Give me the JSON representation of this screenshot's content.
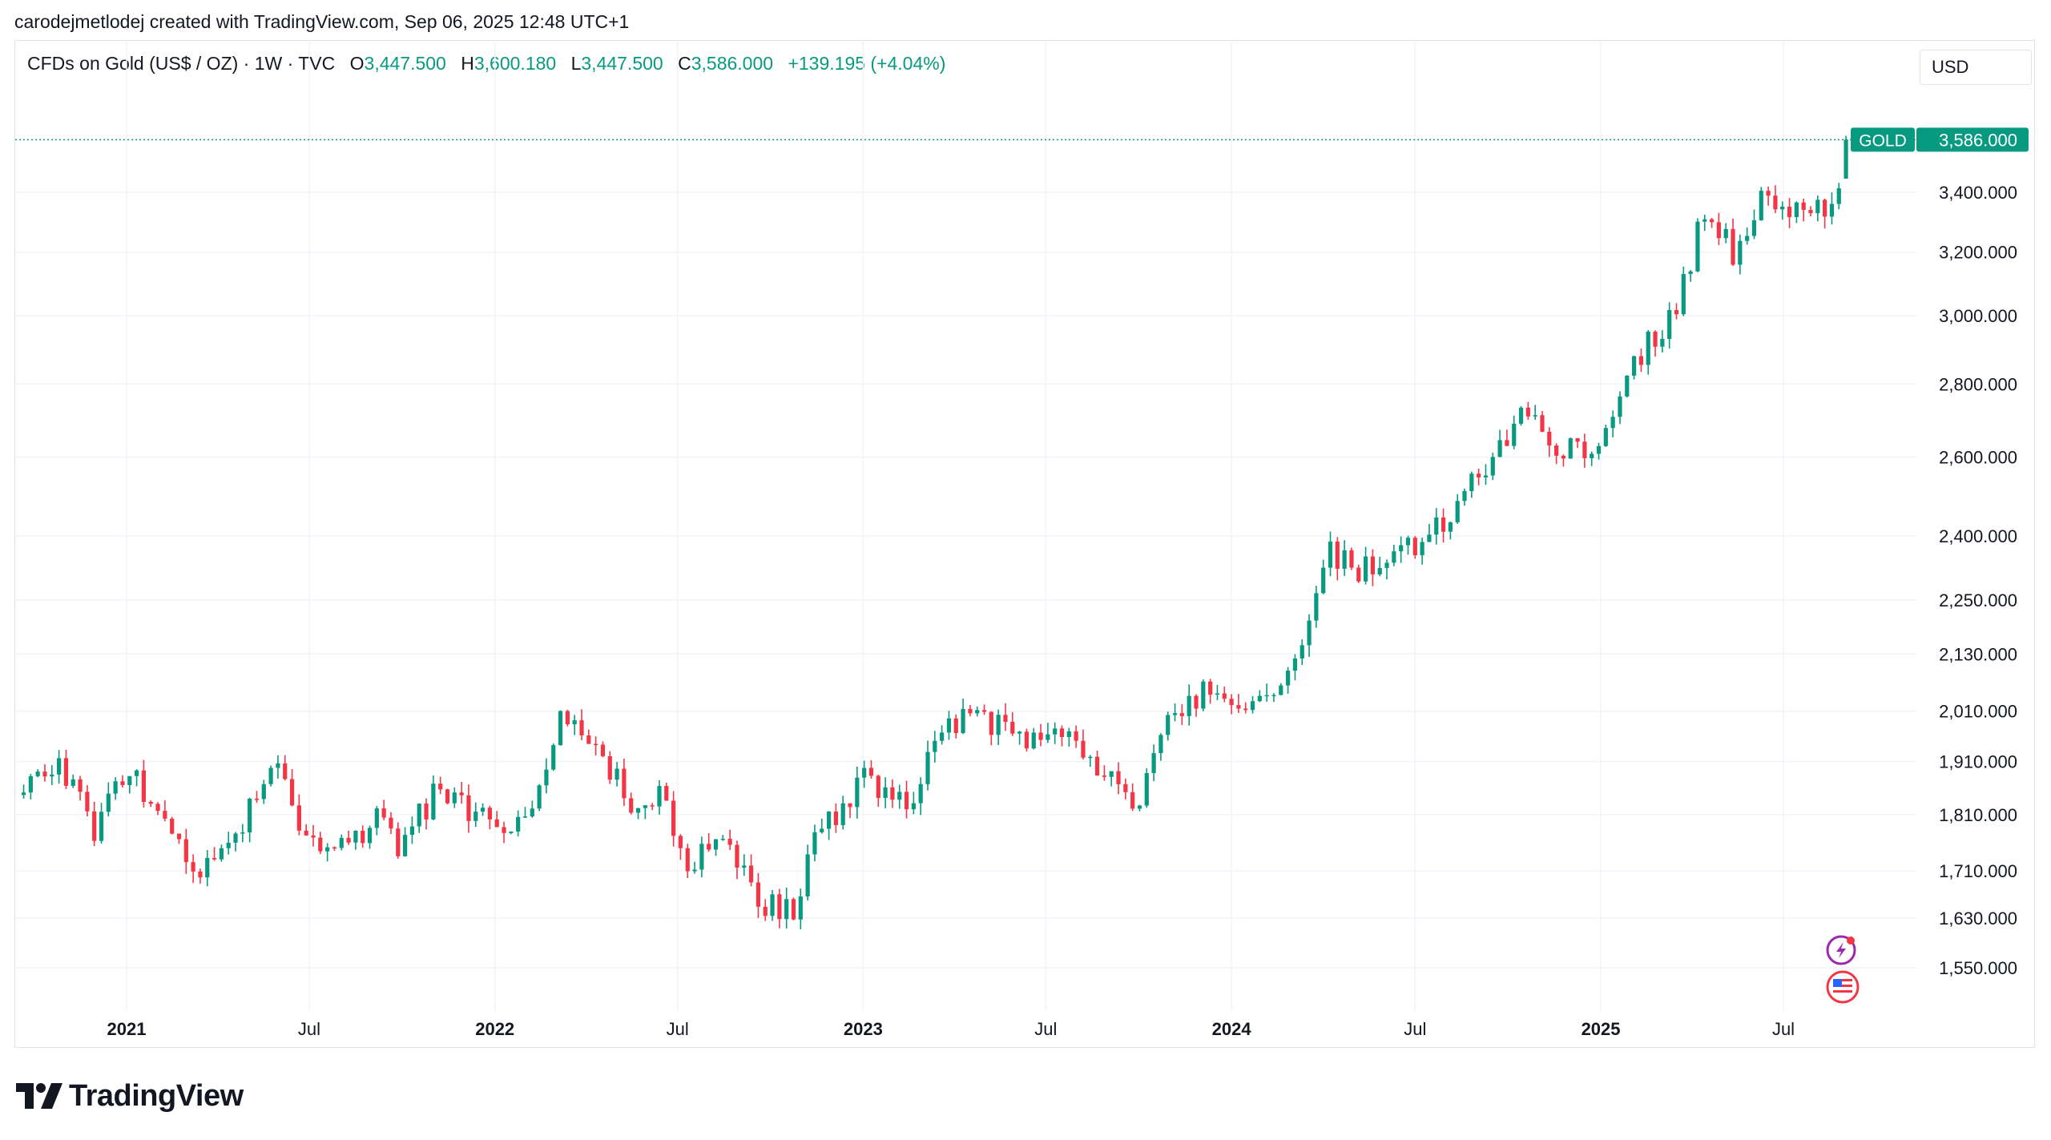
{
  "header": {
    "caption": "carodejmetlodej created with TradingView.com, Sep 06, 2025 12:48 UTC+1"
  },
  "legend": {
    "symbol": "CFDs on Gold (US$ / OZ) · 1W · TVC",
    "open_label": "O",
    "open": "3,447.500",
    "high_label": "H",
    "high": "3,600.180",
    "low_label": "L",
    "low": "3,447.500",
    "close_label": "C",
    "close": "3,586.000",
    "change": "+139.195 (+4.04%)"
  },
  "currency": "USD",
  "price_badge": {
    "symbol": "GOLD",
    "price": "3,586.000"
  },
  "brand": {
    "name": "TradingView"
  },
  "colors": {
    "up": "#089981",
    "down": "#f23645",
    "grid": "#f0f3fa",
    "text": "#131722",
    "badge_bg": "#089981"
  },
  "chart_data": {
    "type": "candlestick",
    "interval": "1W",
    "scale": "log",
    "last_price": 3586.0,
    "x_ticks": [
      {
        "label": "2021",
        "date": "2021-01-01",
        "bold": true
      },
      {
        "label": "Jul",
        "date": "2021-07-01",
        "bold": false
      },
      {
        "label": "2022",
        "date": "2022-01-01",
        "bold": true
      },
      {
        "label": "Jul",
        "date": "2022-07-01",
        "bold": false
      },
      {
        "label": "2023",
        "date": "2023-01-01",
        "bold": true
      },
      {
        "label": "Jul",
        "date": "2023-07-01",
        "bold": false
      },
      {
        "label": "2024",
        "date": "2024-01-01",
        "bold": true
      },
      {
        "label": "Jul",
        "date": "2024-07-01",
        "bold": false
      },
      {
        "label": "2025",
        "date": "2025-01-01",
        "bold": true
      },
      {
        "label": "Jul",
        "date": "2025-07-01",
        "bold": false
      }
    ],
    "y_ticks": [
      {
        "label": "3,400.000",
        "value": 3400
      },
      {
        "label": "3,200.000",
        "value": 3200
      },
      {
        "label": "3,000.000",
        "value": 3000
      },
      {
        "label": "2,800.000",
        "value": 2800
      },
      {
        "label": "2,600.000",
        "value": 2600
      },
      {
        "label": "2,400.000",
        "value": 2400
      },
      {
        "label": "2,250.000",
        "value": 2250
      },
      {
        "label": "2,130.000",
        "value": 2130
      },
      {
        "label": "2,010.000",
        "value": 2010
      },
      {
        "label": "1,910.000",
        "value": 1910
      },
      {
        "label": "1,810.000",
        "value": 1810
      },
      {
        "label": "1,710.000",
        "value": 1710
      },
      {
        "label": "1,630.000",
        "value": 1630
      },
      {
        "label": "1,550.000",
        "value": 1550
      }
    ],
    "close_path": [
      [
        "2020-09-21",
        1865
      ],
      [
        "2020-10-19",
        1900
      ],
      [
        "2020-11-16",
        1870
      ],
      [
        "2020-11-30",
        1780
      ],
      [
        "2021-01-04",
        1900
      ],
      [
        "2021-02-15",
        1780
      ],
      [
        "2021-03-08",
        1700
      ],
      [
        "2021-04-05",
        1730
      ],
      [
        "2021-05-10",
        1840
      ],
      [
        "2021-06-01",
        1900
      ],
      [
        "2021-06-21",
        1770
      ],
      [
        "2021-08-09",
        1760
      ],
      [
        "2021-09-06",
        1800
      ],
      [
        "2021-09-27",
        1755
      ],
      [
        "2021-11-08",
        1860
      ],
      [
        "2021-12-20",
        1800
      ],
      [
        "2022-01-24",
        1790
      ],
      [
        "2022-02-21",
        1900
      ],
      [
        "2022-03-07",
        1990
      ],
      [
        "2022-04-18",
        1930
      ],
      [
        "2022-05-16",
        1820
      ],
      [
        "2022-06-13",
        1850
      ],
      [
        "2022-07-11",
        1720
      ],
      [
        "2022-08-15",
        1780
      ],
      [
        "2022-09-26",
        1650
      ],
      [
        "2022-10-24",
        1640
      ],
      [
        "2022-11-14",
        1760
      ],
      [
        "2023-01-02",
        1880
      ],
      [
        "2023-02-13",
        1830
      ],
      [
        "2023-03-13",
        1940
      ],
      [
        "2023-04-10",
        2010
      ],
      [
        "2023-06-12",
        1960
      ],
      [
        "2023-07-24",
        1950
      ],
      [
        "2023-08-21",
        1900
      ],
      [
        "2023-10-02",
        1820
      ],
      [
        "2023-10-23",
        1990
      ],
      [
        "2023-12-04",
        2050
      ],
      [
        "2024-02-12",
        2020
      ],
      [
        "2024-03-11",
        2160
      ],
      [
        "2024-04-08",
        2360
      ],
      [
        "2024-05-06",
        2320
      ],
      [
        "2024-06-03",
        2330
      ],
      [
        "2024-07-15",
        2400
      ],
      [
        "2024-08-19",
        2490
      ],
      [
        "2024-09-16",
        2620
      ],
      [
        "2024-10-28",
        2740
      ],
      [
        "2024-11-18",
        2620
      ],
      [
        "2024-12-30",
        2630
      ],
      [
        "2025-02-03",
        2860
      ],
      [
        "2025-03-17",
        3020
      ],
      [
        "2025-04-14",
        3340
      ],
      [
        "2025-05-12",
        3200
      ],
      [
        "2025-06-09",
        3400
      ],
      [
        "2025-07-07",
        3340
      ],
      [
        "2025-08-18",
        3340
      ],
      [
        "2025-09-01",
        3586
      ]
    ]
  }
}
